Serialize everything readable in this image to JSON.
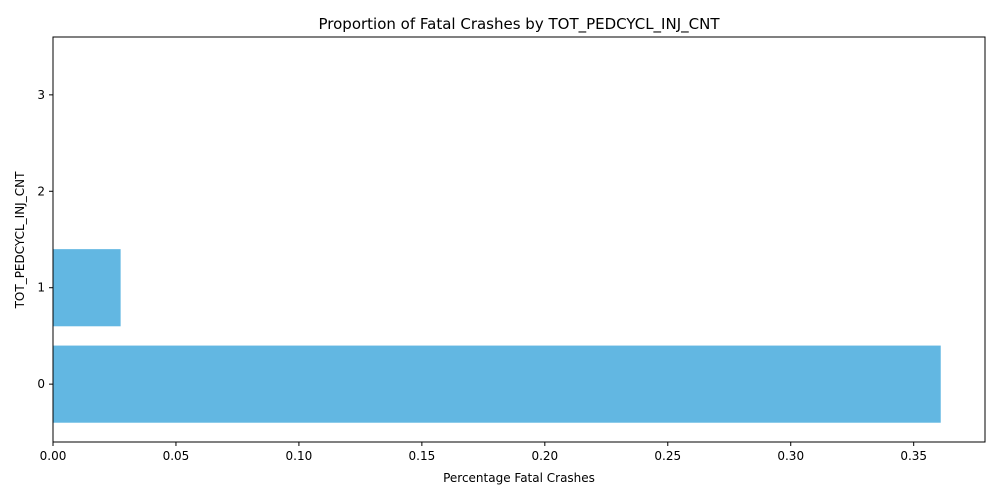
{
  "chart_data": {
    "type": "bar",
    "orientation": "horizontal",
    "title": "Proportion of Fatal Crashes by TOT_PEDCYCL_INJ_CNT",
    "xlabel": "Percentage Fatal Crashes",
    "ylabel": "TOT_PEDCYCL_INJ_CNT",
    "categories": [
      "0",
      "1",
      "2",
      "3"
    ],
    "values": [
      0.361,
      0.0275,
      0,
      0
    ],
    "xlim": [
      0,
      0.379
    ],
    "ylim": [
      -0.6,
      3.6
    ],
    "xticks": [
      0.0,
      0.05,
      0.1,
      0.15,
      0.2,
      0.25,
      0.3,
      0.35
    ],
    "xtick_labels": [
      "0.00",
      "0.05",
      "0.10",
      "0.15",
      "0.20",
      "0.25",
      "0.30",
      "0.35"
    ],
    "bar_color": "#62b7e2",
    "grid": false,
    "legend": "none"
  }
}
